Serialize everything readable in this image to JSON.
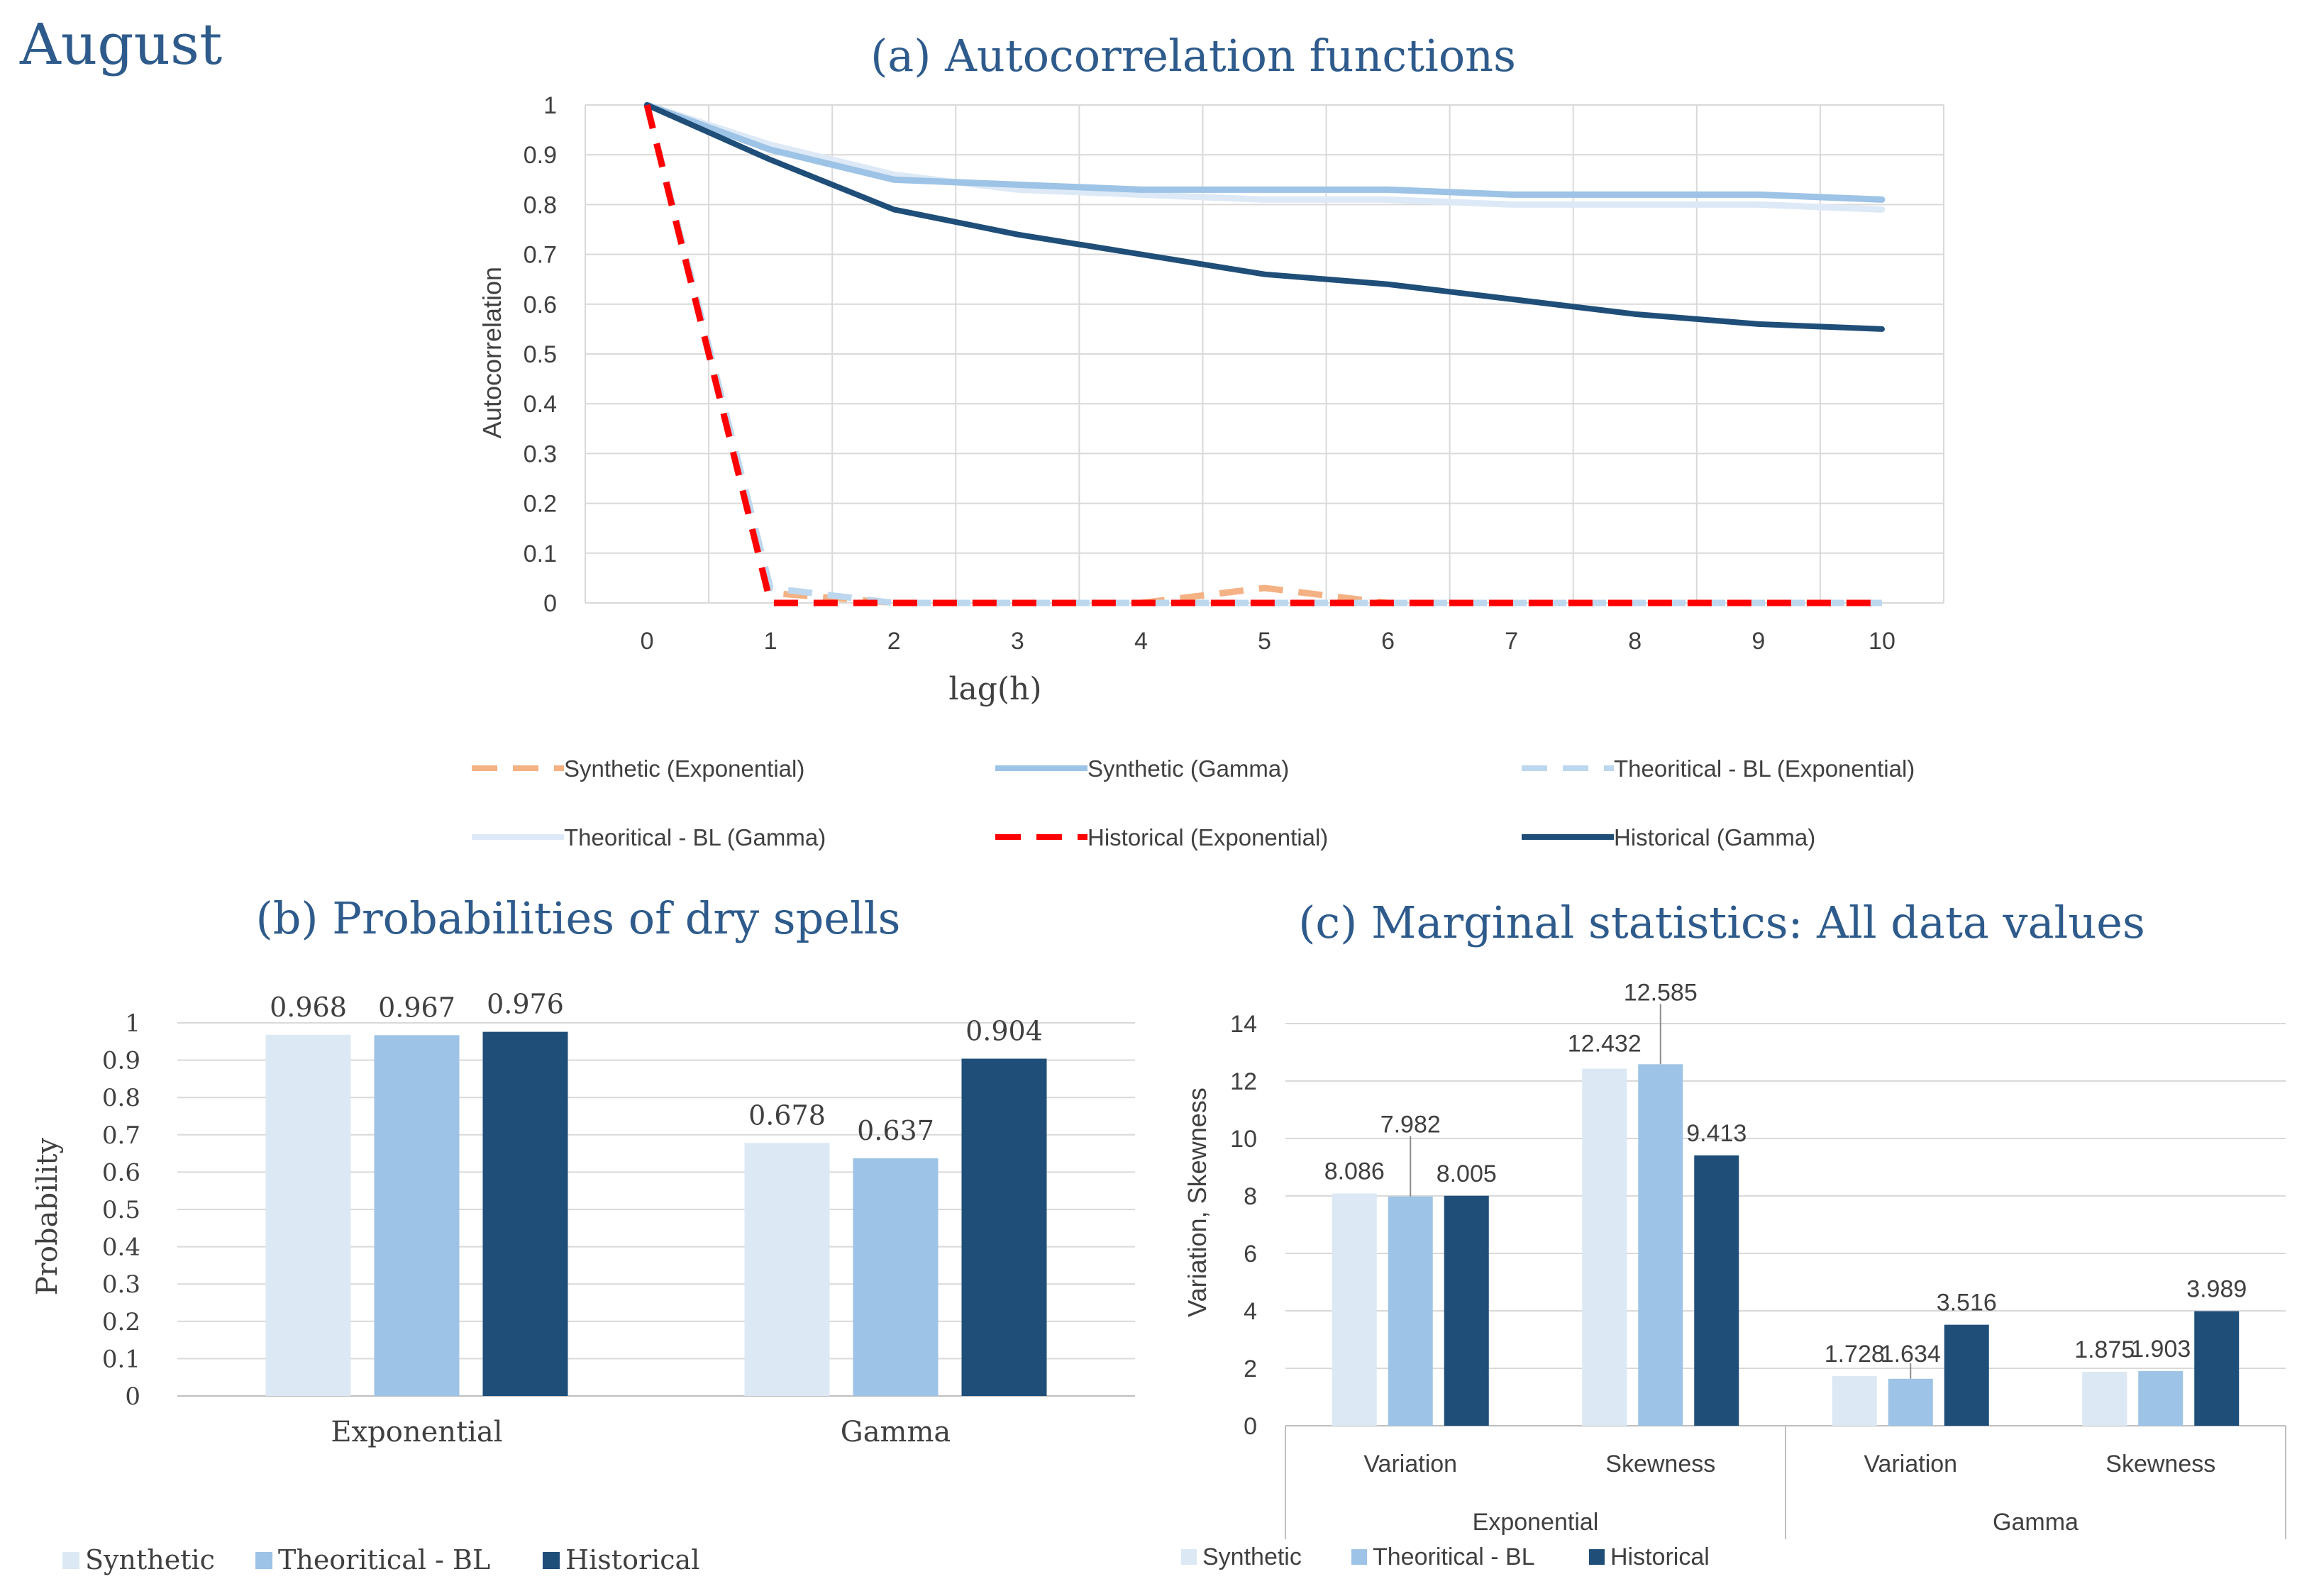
{
  "page_title": "August",
  "colors": {
    "synthetic": "#dce8f4",
    "theoretical": "#9dc3e6",
    "historical": "#1f4e79",
    "syn_exp": "#f4b183",
    "syn_gamma": "#9dc3e6",
    "th_exp": "#bdd7ee",
    "th_gamma": "#dde9f6",
    "hist_exp": "#ff0000",
    "hist_gamma": "#1f4e79",
    "title": "#2e5b8c",
    "grid": "#d9d9d9",
    "text": "#404040"
  },
  "chart_data": [
    {
      "id": "a",
      "type": "line",
      "title": "(a) Autocorrelation functions",
      "xlabel": "lag(h)",
      "ylabel": "Autocorrelation",
      "x": [
        0,
        1,
        2,
        3,
        4,
        5,
        6,
        7,
        8,
        9,
        10
      ],
      "ylim": [
        0,
        1
      ],
      "yticks": [
        "0",
        "0.1",
        "0.2",
        "0.3",
        "0.4",
        "0.5",
        "0.6",
        "0.7",
        "0.8",
        "0.9",
        "1"
      ],
      "xticks": [
        "0",
        "1",
        "2",
        "3",
        "4",
        "5",
        "6",
        "7",
        "8",
        "9",
        "10"
      ],
      "series": [
        {
          "name": "Synthetic (Exponential)",
          "style": "dashed",
          "color": "#f4b183",
          "values": [
            1,
            0.02,
            0,
            0,
            0,
            0.03,
            0,
            0,
            0,
            0,
            0
          ]
        },
        {
          "name": "Synthetic (Gamma)",
          "style": "solid",
          "color": "#9dc3e6",
          "values": [
            1,
            0.91,
            0.85,
            0.84,
            0.83,
            0.83,
            0.83,
            0.82,
            0.82,
            0.82,
            0.81
          ]
        },
        {
          "name": "Theoritical - BL (Exponential)",
          "style": "dashed",
          "color": "#bdd7ee",
          "values": [
            1,
            0.03,
            0,
            0,
            0,
            0,
            0,
            0,
            0,
            0,
            0
          ]
        },
        {
          "name": "Theoritical - BL (Gamma)",
          "style": "solid",
          "color": "#dde9f6",
          "values": [
            1,
            0.92,
            0.86,
            0.83,
            0.82,
            0.81,
            0.81,
            0.8,
            0.8,
            0.8,
            0.79
          ]
        },
        {
          "name": "Historical (Exponential)",
          "style": "dashed",
          "color": "#ff0000",
          "values": [
            1,
            0,
            0,
            0,
            0,
            0,
            0,
            0,
            0,
            0,
            0
          ]
        },
        {
          "name": "Historical (Gamma)",
          "style": "solid",
          "color": "#1f4e79",
          "values": [
            1,
            0.89,
            0.79,
            0.74,
            0.7,
            0.66,
            0.64,
            0.61,
            0.58,
            0.56,
            0.55
          ]
        }
      ]
    },
    {
      "id": "b",
      "type": "bar",
      "title": "(b) Probabilities of dry spells",
      "xlabel": "",
      "ylabel": "Probability",
      "categories": [
        "Exponential",
        "Gamma"
      ],
      "ylim": [
        0,
        1
      ],
      "yticks": [
        "0",
        "0.1",
        "0.2",
        "0.3",
        "0.4",
        "0.5",
        "0.6",
        "0.7",
        "0.8",
        "0.9",
        "1"
      ],
      "series": [
        {
          "name": "Synthetic",
          "color": "#dce8f4",
          "values": [
            0.968,
            0.678
          ],
          "labels": [
            "0.968",
            "0.678"
          ]
        },
        {
          "name": "Theoritical - BL",
          "color": "#9dc3e6",
          "values": [
            0.967,
            0.637
          ],
          "labels": [
            "0.967",
            "0.637"
          ]
        },
        {
          "name": "Historical",
          "color": "#1f4e79",
          "values": [
            0.976,
            0.904
          ],
          "labels": [
            "0.976",
            "0.904"
          ]
        }
      ]
    },
    {
      "id": "c",
      "type": "bar",
      "title": "(c) Marginal statistics: All data values",
      "xlabel": "",
      "ylabel": "Variation, Skewness",
      "categories": [
        "Variation",
        "Skewness",
        "Variation",
        "Skewness"
      ],
      "groups": [
        "Exponential",
        "Gamma"
      ],
      "ylim": [
        0,
        14
      ],
      "yticks": [
        "0",
        "2",
        "4",
        "6",
        "8",
        "10",
        "12",
        "14"
      ],
      "series": [
        {
          "name": "Synthetic",
          "color": "#dce8f4",
          "values": [
            8.086,
            12.432,
            1.728,
            1.875
          ],
          "labels": [
            "8.086",
            "12.432",
            "1.728",
            "1.875"
          ]
        },
        {
          "name": "Theoritical - BL",
          "color": "#9dc3e6",
          "values": [
            7.982,
            12.585,
            1.634,
            1.903
          ],
          "labels": [
            "7.982",
            "12.585",
            "1.634",
            "1.903"
          ]
        },
        {
          "name": "Historical",
          "color": "#1f4e79",
          "values": [
            8.005,
            9.413,
            3.516,
            3.989
          ],
          "labels": [
            "8.005",
            "9.413",
            "3.516",
            "3.989"
          ]
        }
      ]
    }
  ]
}
